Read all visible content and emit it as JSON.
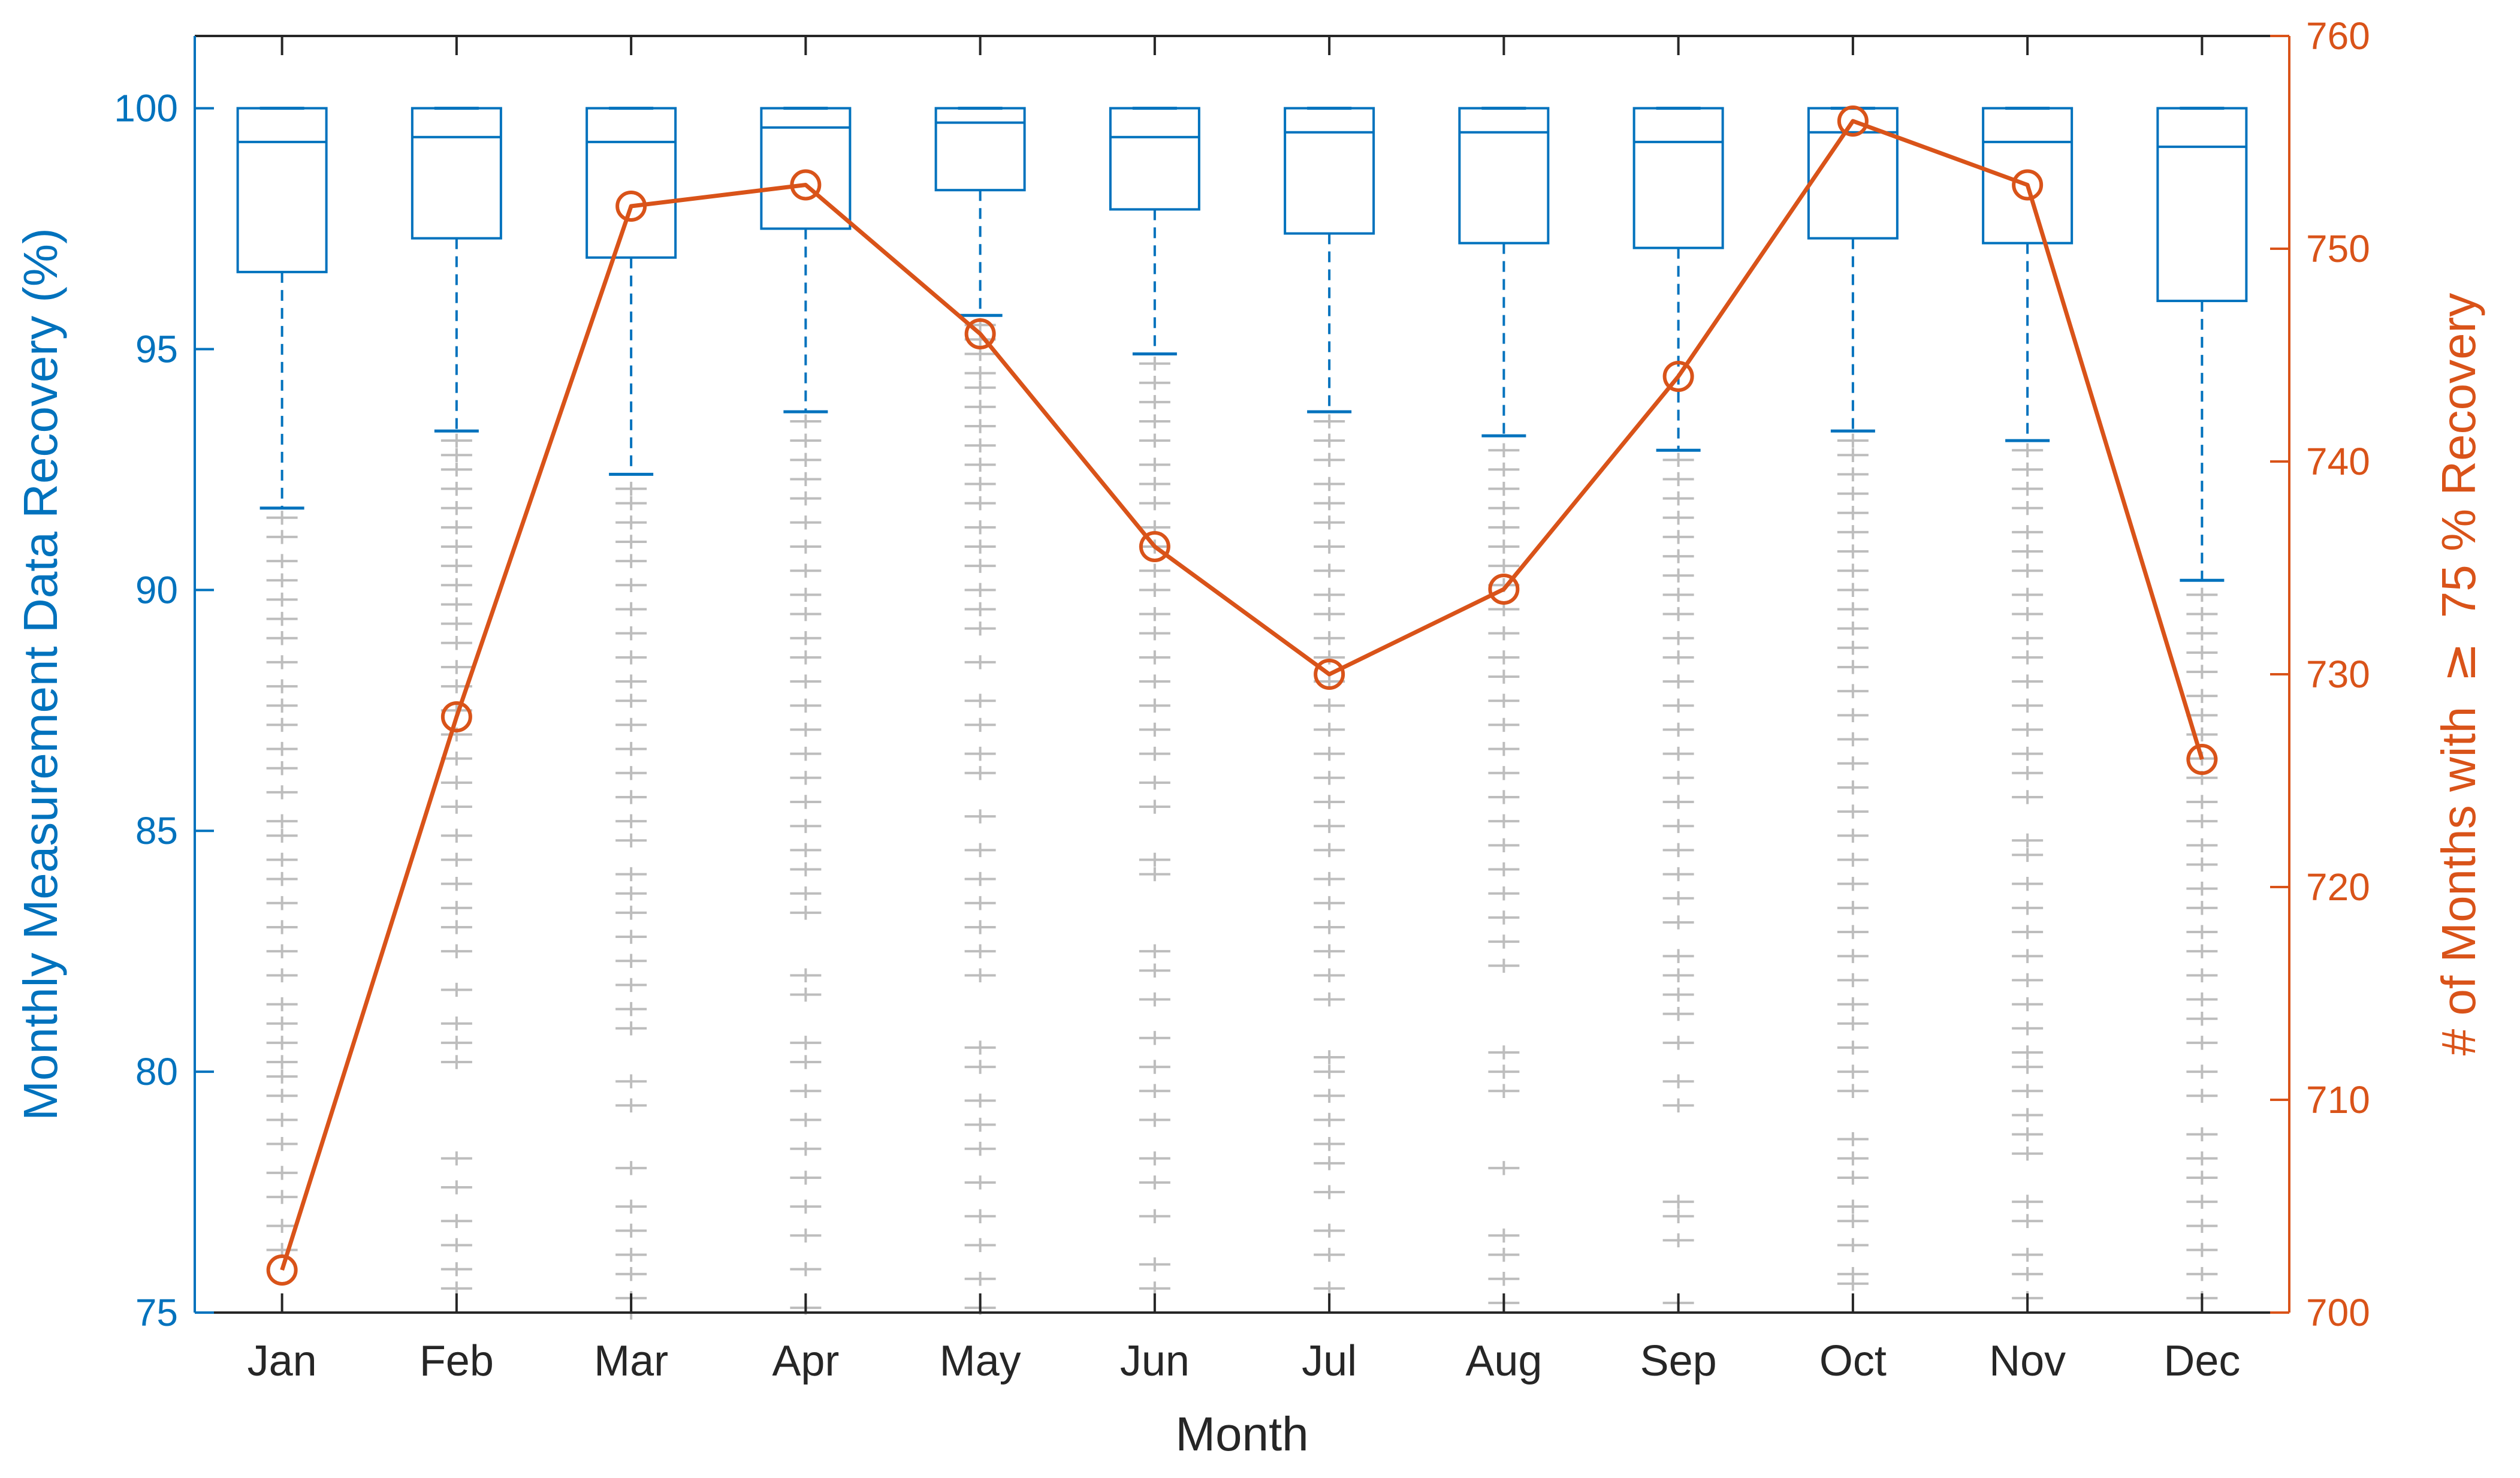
{
  "chart_data": {
    "type": "box",
    "categories": [
      "Jan",
      "Feb",
      "Mar",
      "Apr",
      "May",
      "Jun",
      "Jul",
      "Aug",
      "Sep",
      "Oct",
      "Nov",
      "Dec"
    ],
    "xlabel": "Month",
    "ylabel_left": "Monthly Measurement Data Recovery (%)",
    "ylabel_right_prefix": "# of Months with",
    "ylabel_right_symbol": "≥",
    "ylabel_right_suffix": "75 % Recovery",
    "ylim_left": [
      75,
      101.5
    ],
    "yticks_left": [
      "75",
      "80",
      "85",
      "90",
      "95",
      "100"
    ],
    "ylim_right": [
      700,
      760
    ],
    "yticks_right": [
      "700",
      "710",
      "720",
      "730",
      "740",
      "750",
      "760"
    ],
    "grid": false,
    "colors": {
      "left_axis": "#0072BD",
      "right_axis": "#D95319",
      "outliers": "#BDBDBD",
      "axis": "#262626"
    },
    "boxes": [
      {
        "month": "Jan",
        "whisker_low": 91.7,
        "q1": 96.6,
        "median": 99.3,
        "q3": 100,
        "whisker_high": 100
      },
      {
        "month": "Feb",
        "whisker_low": 93.3,
        "q1": 97.3,
        "median": 99.4,
        "q3": 100,
        "whisker_high": 100
      },
      {
        "month": "Mar",
        "whisker_low": 92.4,
        "q1": 96.9,
        "median": 99.3,
        "q3": 100,
        "whisker_high": 100
      },
      {
        "month": "Apr",
        "whisker_low": 93.7,
        "q1": 97.5,
        "median": 99.6,
        "q3": 100,
        "whisker_high": 100
      },
      {
        "month": "May",
        "whisker_low": 95.7,
        "q1": 98.3,
        "median": 99.7,
        "q3": 100,
        "whisker_high": 100
      },
      {
        "month": "Jun",
        "whisker_low": 94.9,
        "q1": 97.9,
        "median": 99.4,
        "q3": 100,
        "whisker_high": 100
      },
      {
        "month": "Jul",
        "whisker_low": 93.7,
        "q1": 97.4,
        "median": 99.5,
        "q3": 100,
        "whisker_high": 100
      },
      {
        "month": "Aug",
        "whisker_low": 93.2,
        "q1": 97.2,
        "median": 99.5,
        "q3": 100,
        "whisker_high": 100
      },
      {
        "month": "Sep",
        "whisker_low": 92.9,
        "q1": 97.1,
        "median": 99.3,
        "q3": 100,
        "whisker_high": 100
      },
      {
        "month": "Oct",
        "whisker_low": 93.3,
        "q1": 97.3,
        "median": 99.5,
        "q3": 100,
        "whisker_high": 100
      },
      {
        "month": "Nov",
        "whisker_low": 93.1,
        "q1": 97.2,
        "median": 99.3,
        "q3": 100,
        "whisker_high": 100
      },
      {
        "month": "Dec",
        "whisker_low": 90.2,
        "q1": 96.0,
        "median": 99.2,
        "q3": 100,
        "whisker_high": 100
      }
    ],
    "outliers": [
      [
        91.5,
        91.1,
        90.6,
        90.2,
        89.8,
        89.4,
        89.0,
        88.5,
        88.0,
        87.6,
        87.2,
        86.7,
        86.3,
        85.8,
        85.2,
        84.9,
        84.4,
        84.0,
        83.5,
        83.0,
        82.5,
        82.0,
        81.4,
        81.0,
        80.6,
        80.2,
        79.9,
        79.5,
        79.0,
        78.5,
        77.9,
        77.4,
        76.8,
        76.3
      ],
      [
        93.1,
        92.8,
        92.5,
        92.1,
        91.7,
        91.3,
        90.9,
        90.5,
        90.1,
        89.7,
        89.3,
        88.9,
        88.4,
        88.0,
        87.5,
        87.0,
        86.5,
        86.0,
        85.5,
        84.9,
        84.4,
        83.9,
        83.4,
        83.0,
        82.5,
        81.7,
        81.0,
        80.6,
        80.2,
        78.2,
        77.6,
        76.9,
        76.4,
        75.9,
        75.5
      ],
      [
        92.1,
        91.8,
        91.4,
        91.0,
        90.6,
        90.1,
        89.6,
        89.1,
        88.6,
        88.1,
        87.7,
        87.2,
        86.7,
        86.2,
        85.7,
        85.2,
        84.8,
        84.1,
        83.7,
        83.3,
        82.8,
        82.3,
        81.8,
        81.3,
        80.9,
        79.8,
        79.3,
        78.0,
        77.2,
        76.7,
        76.2,
        75.8,
        75.3,
        75.0
      ],
      [
        93.5,
        93.1,
        92.7,
        92.3,
        91.9,
        91.4,
        90.9,
        90.4,
        89.9,
        89.5,
        89.0,
        88.6,
        88.1,
        87.6,
        87.1,
        86.6,
        86.1,
        85.6,
        85.1,
        84.6,
        84.2,
        83.7,
        83.3,
        82.0,
        81.6,
        80.6,
        80.2,
        79.6,
        79.0,
        78.4,
        77.8,
        77.2,
        76.6,
        75.9,
        75.1
      ],
      [
        95.5,
        95.2,
        94.9,
        94.5,
        94.2,
        93.8,
        93.4,
        93.0,
        92.6,
        92.2,
        91.8,
        91.3,
        90.9,
        90.5,
        90.0,
        89.6,
        89.2,
        88.5,
        87.7,
        87.2,
        86.6,
        86.2,
        85.3,
        84.6,
        84.0,
        83.5,
        83.0,
        82.5,
        82.0,
        80.5,
        80.1,
        79.4,
        78.9,
        78.4,
        77.7,
        77.0,
        76.4,
        75.7,
        75.1
      ],
      [
        94.7,
        94.3,
        93.9,
        93.5,
        93.1,
        92.6,
        92.2,
        91.8,
        91.3,
        90.9,
        90.4,
        90.0,
        89.5,
        89.1,
        88.6,
        88.1,
        87.6,
        87.1,
        86.6,
        86.0,
        85.5,
        84.4,
        84.1,
        82.5,
        82.1,
        81.5,
        80.7,
        80.1,
        79.6,
        79.0,
        78.2,
        77.7,
        77.0,
        76.0,
        75.5
      ],
      [
        93.5,
        93.1,
        92.7,
        92.2,
        91.8,
        91.4,
        90.9,
        90.4,
        89.9,
        89.5,
        89.0,
        88.6,
        88.1,
        87.6,
        87.1,
        86.6,
        86.1,
        85.6,
        85.1,
        84.6,
        84.0,
        83.5,
        83.0,
        82.5,
        82.0,
        81.5,
        80.3,
        80.0,
        79.5,
        79.0,
        78.5,
        78.1,
        77.5,
        76.7,
        76.2,
        75.5
      ],
      [
        92.9,
        92.5,
        92.1,
        91.7,
        91.3,
        90.9,
        90.5,
        90.1,
        89.6,
        89.1,
        88.6,
        88.2,
        87.7,
        87.2,
        86.7,
        86.2,
        85.7,
        85.2,
        84.7,
        84.2,
        83.7,
        83.2,
        82.7,
        82.2,
        80.4,
        80.0,
        79.6,
        78.0,
        76.6,
        76.2,
        75.7,
        75.2
      ],
      [
        92.7,
        92.3,
        91.9,
        91.5,
        91.1,
        90.7,
        90.3,
        89.9,
        89.5,
        89.0,
        88.6,
        88.1,
        87.6,
        87.1,
        86.6,
        86.1,
        85.6,
        85.1,
        84.6,
        84.1,
        83.6,
        83.1,
        82.4,
        82.0,
        81.6,
        81.2,
        80.6,
        79.8,
        79.3,
        77.3,
        77.0,
        76.5,
        75.2
      ],
      [
        93.1,
        92.8,
        92.4,
        92.0,
        91.6,
        91.2,
        90.8,
        90.4,
        90.0,
        89.6,
        89.2,
        88.8,
        88.4,
        87.9,
        87.4,
        86.9,
        86.4,
        85.9,
        85.4,
        84.9,
        84.4,
        83.9,
        83.4,
        82.9,
        82.4,
        81.9,
        81.4,
        81.0,
        80.5,
        80.0,
        79.6,
        78.6,
        78.2,
        77.8,
        77.2,
        76.9,
        76.4,
        75.8,
        75.6
      ],
      [
        92.9,
        92.5,
        92.1,
        91.7,
        91.2,
        90.8,
        90.4,
        89.9,
        89.5,
        89.0,
        88.6,
        88.1,
        87.6,
        87.1,
        86.6,
        86.2,
        85.7,
        84.8,
        84.5,
        83.9,
        83.4,
        82.9,
        82.4,
        81.9,
        81.4,
        80.9,
        80.4,
        80.1,
        79.6,
        79.1,
        78.7,
        78.3,
        77.3,
        76.9,
        76.2,
        75.8,
        75.3
      ],
      [
        89.9,
        89.5,
        89.1,
        88.7,
        88.3,
        87.8,
        87.4,
        87.0,
        86.5,
        86.1,
        85.6,
        85.2,
        84.7,
        84.3,
        83.8,
        83.4,
        82.9,
        82.5,
        82.0,
        81.5,
        81.1,
        80.6,
        80.0,
        79.5,
        78.7,
        78.2,
        77.8,
        77.3,
        76.8,
        76.3,
        75.8,
        75.3
      ]
    ],
    "line_series": {
      "values": [
        702,
        728,
        752,
        753,
        746,
        736,
        730,
        734,
        744,
        756,
        753,
        726
      ],
      "marker": "circle"
    }
  }
}
